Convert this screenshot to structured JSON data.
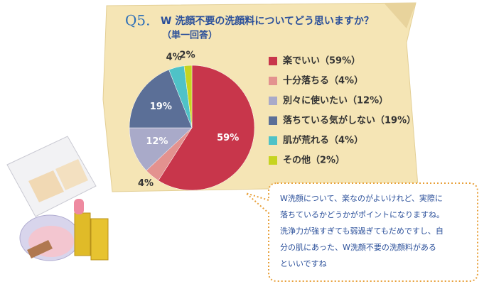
{
  "chart_data": {
    "type": "pie",
    "question": "Q5.",
    "title": "W 洗顔不要の洗顔料についてどう思いますか？",
    "subtitle": "（単一回答）",
    "categories": [
      "楽でいい（59%）",
      "十分落ちる（4%）",
      "別々に使いたい（12%）",
      "落ちている気がしない（19%）",
      "肌が荒れる（4%）",
      "その他（2%）"
    ],
    "values": [
      59,
      4,
      12,
      19,
      4,
      2
    ],
    "value_labels": [
      "59%",
      "4%",
      "12%",
      "19%",
      "4%",
      "2%"
    ],
    "colors": [
      "#c8364b",
      "#e3928f",
      "#a9aac9",
      "#5b6f97",
      "#4fc2c7",
      "#c6d420"
    ],
    "annotation": [
      "W洗顔について、楽なのがよいけれど、実際に",
      "落ちているかどうかがポイントになりますね。",
      "洗浄力が強すぎても弱過ぎてもだめですし、自",
      "分の肌にあった、W洗顔不要の洗顔料がある",
      "といいですね"
    ]
  }
}
